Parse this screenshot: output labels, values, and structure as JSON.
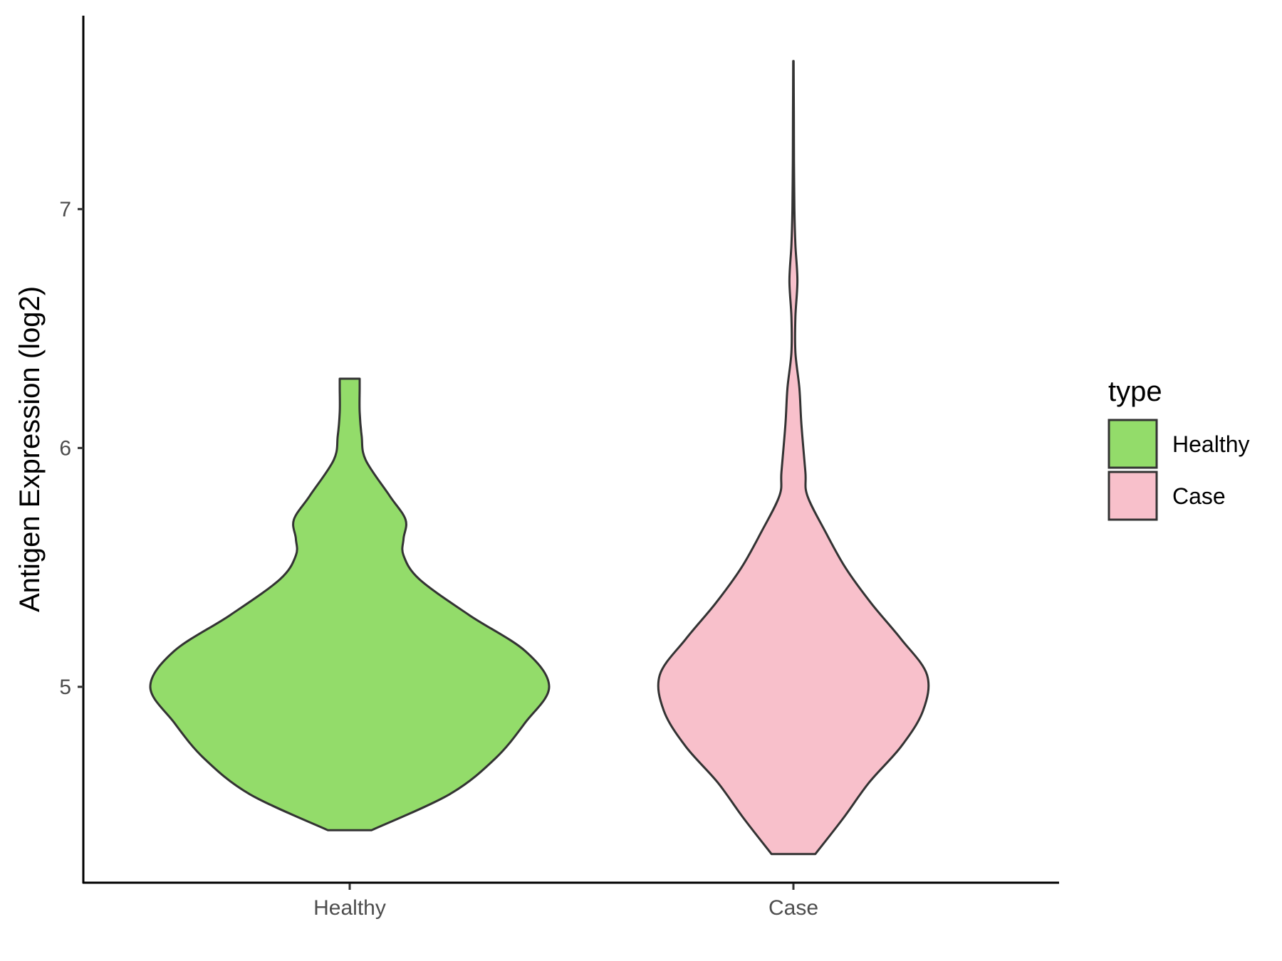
{
  "chart_data": {
    "type": "violin",
    "title": "",
    "xlabel": "",
    "ylabel": "Antigen Expression (log2)",
    "ylim": [
      4.18,
      7.81
    ],
    "yticks": [
      5,
      6,
      7
    ],
    "categories": [
      "Healthy",
      "Case"
    ],
    "grid": false,
    "legend": {
      "title": "type",
      "position": "right",
      "entries": [
        {
          "label": "Healthy",
          "color": "#93DC6A"
        },
        {
          "label": "Case",
          "color": "#F8C0CB"
        }
      ]
    },
    "series": [
      {
        "category": "Healthy",
        "color": "#93DC6A",
        "density": [
          [
            4.4,
            0.11
          ],
          [
            4.55,
            0.5
          ],
          [
            4.7,
            0.73
          ],
          [
            4.85,
            0.88
          ],
          [
            5.0,
            1.0
          ],
          [
            5.15,
            0.88
          ],
          [
            5.3,
            0.6
          ],
          [
            5.45,
            0.35
          ],
          [
            5.55,
            0.27
          ],
          [
            5.62,
            0.27
          ],
          [
            5.7,
            0.28
          ],
          [
            5.8,
            0.2
          ],
          [
            5.95,
            0.08
          ],
          [
            6.05,
            0.06
          ],
          [
            6.15,
            0.05
          ],
          [
            6.25,
            0.05
          ],
          [
            6.29,
            0.05
          ]
        ]
      },
      {
        "category": "Case",
        "color": "#F8C0CB",
        "density": [
          [
            4.3,
            0.11
          ],
          [
            4.45,
            0.25
          ],
          [
            4.6,
            0.38
          ],
          [
            4.75,
            0.54
          ],
          [
            4.9,
            0.65
          ],
          [
            5.05,
            0.67
          ],
          [
            5.2,
            0.54
          ],
          [
            5.35,
            0.39
          ],
          [
            5.5,
            0.26
          ],
          [
            5.65,
            0.16
          ],
          [
            5.8,
            0.07
          ],
          [
            5.9,
            0.06
          ],
          [
            6.1,
            0.04
          ],
          [
            6.25,
            0.03
          ],
          [
            6.4,
            0.01
          ],
          [
            6.55,
            0.01
          ],
          [
            6.7,
            0.02
          ],
          [
            6.85,
            0.01
          ],
          [
            7.0,
            0.005
          ],
          [
            7.2,
            0.003
          ],
          [
            7.4,
            0.002
          ],
          [
            7.62,
            0.001
          ]
        ]
      }
    ]
  }
}
